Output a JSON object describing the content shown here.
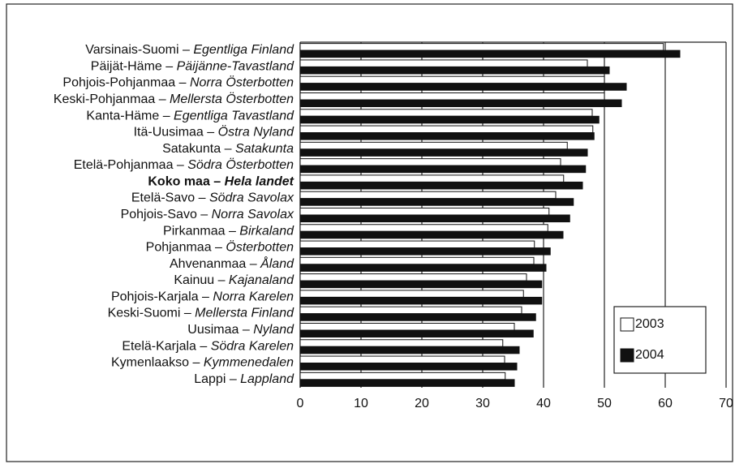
{
  "chart_data": {
    "type": "barh",
    "categories": [
      "Varsinais-Suomi – Egentliga Finland",
      "Päijät-Häme – Päijänne-Tavastland",
      "Pohjois-Pohjanmaa – Norra Österbotten",
      "Keski-Pohjanmaa – Mellersta Österbotten",
      "Kanta-Häme – Egentliga Tavastland",
      "Itä-Uusimaa – Östra Nyland",
      "Satakunta – Satakunta",
      "Etelä-Pohjanmaa – Södra Österbotten",
      "Koko maa – Hela landet",
      "Etelä-Savo – Södra Savolax",
      "Pohjois-Savo – Norra Savolax",
      "Pirkanmaa – Birkaland",
      "Pohjanmaa – Österbotten",
      "Ahvenanmaa – Åland",
      "Kainuu – Kajanaland",
      "Pohjois-Karjala – Norra Karelen",
      "Keski-Suomi – Mellersta Finland",
      "Uusimaa – Nyland",
      "Etelä-Karjala – Södra Karelen",
      "Kymenlaakso – Kymmenedalen",
      "Lappi – Lappland"
    ],
    "bold_category_index": 8,
    "series": [
      {
        "name": "2003",
        "color": "#ffffff",
        "values": [
          59.7,
          47.2,
          50.0,
          50.0,
          48.0,
          48.1,
          43.9,
          42.8,
          43.3,
          42.0,
          40.9,
          40.7,
          38.5,
          38.4,
          37.2,
          36.7,
          36.4,
          35.2,
          33.3,
          33.6,
          33.7
        ]
      },
      {
        "name": "2004",
        "color": "#111111",
        "values": [
          62.4,
          50.8,
          53.6,
          52.8,
          49.1,
          48.3,
          47.2,
          46.9,
          46.4,
          44.9,
          44.3,
          43.2,
          41.1,
          40.4,
          39.7,
          39.7,
          38.7,
          38.3,
          36.0,
          35.6,
          35.2
        ]
      }
    ],
    "xlim": [
      0,
      70
    ],
    "xticks": [
      0,
      10,
      20,
      30,
      40,
      50,
      60,
      70
    ],
    "grid": true,
    "legend_position": "lower right"
  }
}
